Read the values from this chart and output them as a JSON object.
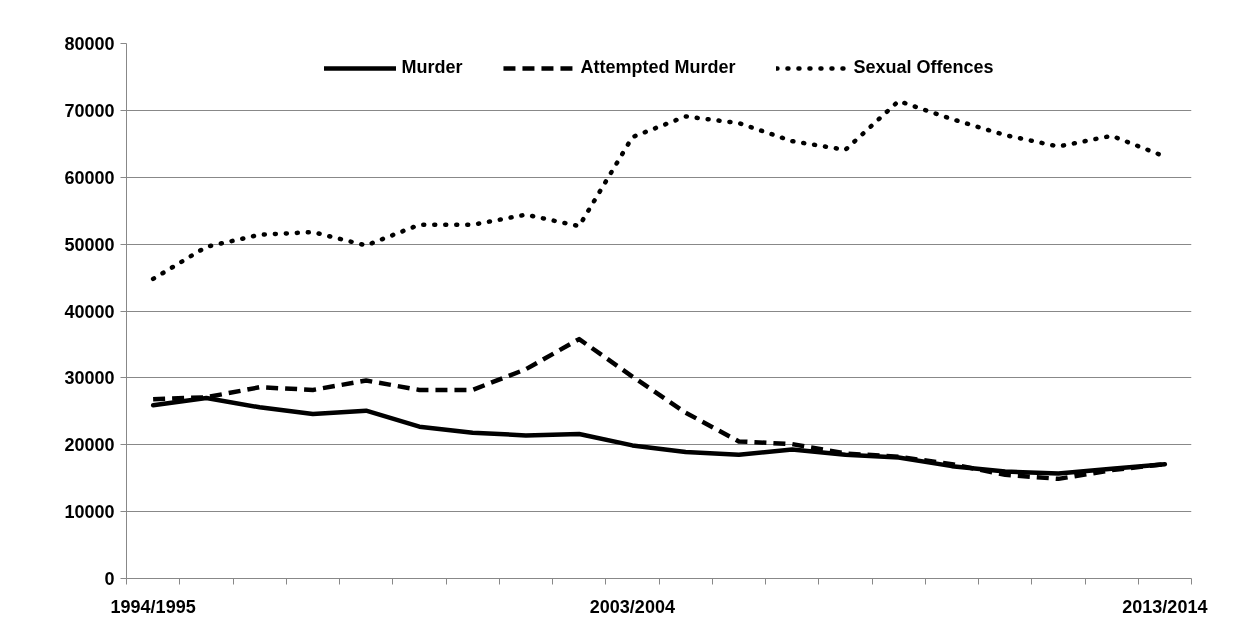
{
  "chart_data": {
    "type": "line",
    "categories": [
      "1994/1995",
      null,
      null,
      null,
      null,
      null,
      null,
      null,
      null,
      "2003/2004",
      null,
      null,
      null,
      null,
      null,
      null,
      null,
      null,
      null,
      "2013/2014"
    ],
    "ylim": [
      0,
      80000
    ],
    "yticks": [
      0,
      10000,
      20000,
      30000,
      40000,
      50000,
      60000,
      70000,
      80000
    ],
    "grid": "y",
    "legend": "top",
    "series": [
      {
        "name": "Murder",
        "color": "#000000",
        "line_style": "solid",
        "values": [
          25900,
          27000,
          25600,
          24600,
          25100,
          22700,
          21800,
          21400,
          21600,
          19900,
          18900,
          18500,
          19300,
          18500,
          18100,
          16800,
          16000,
          15700,
          16400,
          17100
        ]
      },
      {
        "name": "Attempted Murder",
        "color": "#000000",
        "line_style": "dashed",
        "values": [
          26800,
          27100,
          28600,
          28200,
          29600,
          28200,
          28200,
          31300,
          35800,
          30200,
          24800,
          20500,
          20100,
          18700,
          18200,
          17100,
          15500,
          14900,
          16200,
          17100
        ]
      },
      {
        "name": "Sexual Offences",
        "color": "#000000",
        "line_style": "dotted",
        "values": [
          44800,
          49600,
          51400,
          51800,
          49800,
          52900,
          52900,
          54400,
          52700,
          66000,
          69100,
          68100,
          65400,
          64100,
          71400,
          68700,
          66300,
          64600,
          66200,
          63100
        ]
      }
    ]
  }
}
